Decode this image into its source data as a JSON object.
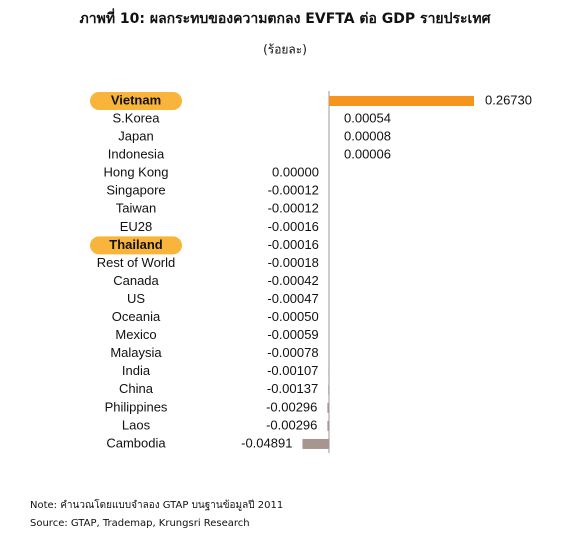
{
  "chart_data": {
    "type": "bar",
    "orientation": "horizontal",
    "title": "ภาพที่ 10: ผลกระทบของความตกลง EVFTA ต่อ GDP รายประเทศ",
    "subtitle": "(ร้อยละ)",
    "categories": [
      "Vietnam",
      "S.Korea",
      "Japan",
      "Indonesia",
      "Hong Kong",
      "Singapore",
      "Taiwan",
      "EU28",
      "Thailand",
      "Rest of World",
      "Canada",
      "US",
      "Oceania",
      "Mexico",
      "Malaysia",
      "India",
      "China",
      "Philippines",
      "Laos",
      "Cambodia"
    ],
    "values": [
      0.2673,
      0.00054,
      8e-05,
      6e-05,
      0,
      -0.00012,
      -0.00012,
      -0.00016,
      -0.00016,
      -0.00018,
      -0.00042,
      -0.00047,
      -0.0005,
      -0.00059,
      -0.00078,
      -0.00107,
      -0.00137,
      -0.00296,
      -0.00296,
      -0.04891
    ],
    "value_labels": [
      "0.26730",
      "0.00054",
      "0.00008",
      "0.00006",
      "0.00000",
      "-0.00012",
      "-0.00012",
      "-0.00016",
      "-0.00016",
      "-0.00018",
      "-0.00042",
      "-0.00047",
      "-0.00050",
      "-0.00059",
      "-0.00078",
      "-0.00107",
      "-0.00137",
      "-0.00296",
      "-0.00296",
      "-0.04891"
    ],
    "color": "#a8958f",
    "highlight_color": "#f7941d",
    "highlight_label_color": "#f9b43c",
    "highlighted": [
      0,
      8
    ],
    "notes": [
      "Note: คำนวณโดยแบบจำลอง GTAP บนฐานข้อมูลปี 2011",
      "Source: GTAP, Trademap, Krungsri Research"
    ]
  }
}
